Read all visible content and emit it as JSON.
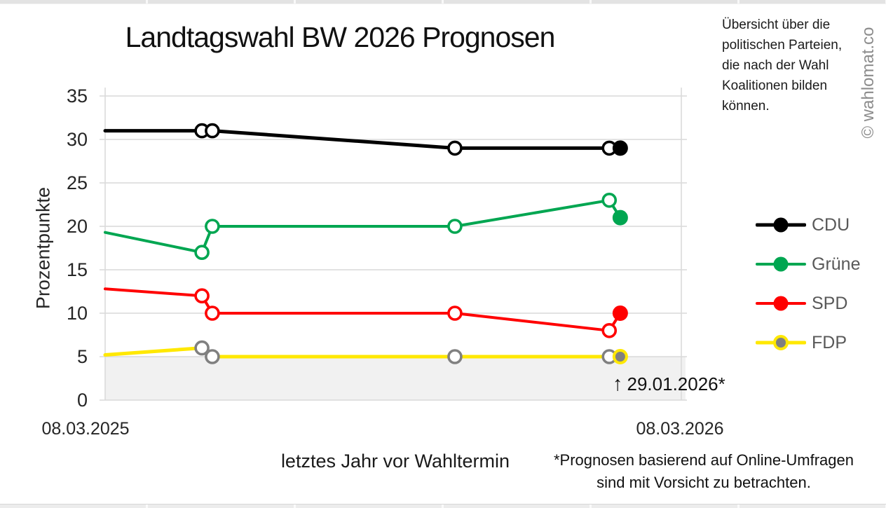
{
  "chart_data": {
    "type": "line",
    "title": "Landtagswahl BW 2026 Prognosen",
    "ylabel": "Prozentpunkte",
    "xlabel": "letztes Jahr vor Wahltermin",
    "ylim": [
      0,
      35
    ],
    "yticks": [
      35,
      30,
      25,
      20,
      15,
      10,
      5,
      0
    ],
    "x_start_label": "08.03.2025",
    "x_end_label": "08.03.2026",
    "grid": "horizontal",
    "legend_position": "right",
    "threshold_band": {
      "from": 0,
      "to": 5,
      "color": "#f1f1f1"
    },
    "annotation": {
      "arrow": "↑",
      "label": "29.01.2026*"
    },
    "series": [
      {
        "name": "CDU",
        "color": "#000000",
        "marker_color": "#000000",
        "line_width": 5,
        "points": [
          {
            "x": 0.0,
            "y": 31
          },
          {
            "x": 0.168,
            "y": 31,
            "marker": "open"
          },
          {
            "x": 0.186,
            "y": 31,
            "marker": "open"
          },
          {
            "x": 0.607,
            "y": 29,
            "marker": "open"
          },
          {
            "x": 0.875,
            "y": 29,
            "marker": "open"
          },
          {
            "x": 0.894,
            "y": 29,
            "marker": "filled"
          }
        ]
      },
      {
        "name": "Grüne",
        "color": "#00A651",
        "marker_color": "#00A651",
        "line_width": 4,
        "points": [
          {
            "x": 0.0,
            "y": 19.3
          },
          {
            "x": 0.168,
            "y": 17,
            "marker": "open"
          },
          {
            "x": 0.186,
            "y": 20,
            "marker": "open"
          },
          {
            "x": 0.607,
            "y": 20,
            "marker": "open"
          },
          {
            "x": 0.875,
            "y": 23,
            "marker": "open"
          },
          {
            "x": 0.894,
            "y": 21,
            "marker": "filled"
          }
        ]
      },
      {
        "name": "SPD",
        "color": "#FF0000",
        "marker_color": "#FF0000",
        "line_width": 4,
        "points": [
          {
            "x": 0.0,
            "y": 12.8
          },
          {
            "x": 0.168,
            "y": 12,
            "marker": "open"
          },
          {
            "x": 0.186,
            "y": 10,
            "marker": "open"
          },
          {
            "x": 0.607,
            "y": 10,
            "marker": "open"
          },
          {
            "x": 0.875,
            "y": 8,
            "marker": "open"
          },
          {
            "x": 0.894,
            "y": 10,
            "marker": "filled"
          }
        ]
      },
      {
        "name": "FDP",
        "color": "#FFE800",
        "marker_color": "#808080",
        "final_marker_ring": "#FFE800",
        "line_width": 5,
        "points": [
          {
            "x": 0.0,
            "y": 5.2
          },
          {
            "x": 0.168,
            "y": 6,
            "marker": "open"
          },
          {
            "x": 0.186,
            "y": 5,
            "marker": "open"
          },
          {
            "x": 0.607,
            "y": 5,
            "marker": "open"
          },
          {
            "x": 0.875,
            "y": 5,
            "marker": "open"
          },
          {
            "x": 0.894,
            "y": 5,
            "marker": "filled"
          }
        ]
      }
    ]
  },
  "info_text": {
    "lines": [
      "Übersicht über die",
      "politischen Parteien,",
      "die nach der Wahl",
      "Koalitionen bilden",
      "können."
    ]
  },
  "watermark": "© wahlomat.co",
  "footnote": {
    "lines": [
      "*Prognosen basierend auf Online-Umfragen",
      "sind mit Vorsicht zu betrachten."
    ]
  },
  "colors": {
    "grid": "#d9d9d9",
    "legend_text": "#595959",
    "band": "#f1f1f1",
    "watermark": "#8c8c8c"
  }
}
